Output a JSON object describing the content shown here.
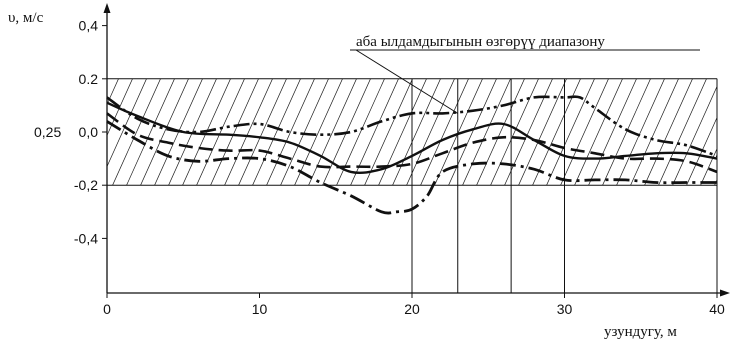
{
  "chart_data": {
    "type": "line",
    "ylabel": "υ, м/с",
    "xlabel": "узундугу, м",
    "xlim": [
      0,
      40
    ],
    "ylim": [
      -0.6,
      0.45
    ],
    "x_ticks": [
      {
        "value": 0,
        "label": "0"
      },
      {
        "value": 10,
        "label": "10"
      },
      {
        "value": 20,
        "label": "20"
      },
      {
        "value": 30,
        "label": "30"
      },
      {
        "value": 40,
        "label": "40"
      }
    ],
    "y_ticks": [
      {
        "value": 0.4,
        "label": "0,4"
      },
      {
        "value": 0.2,
        "label": "0.2"
      },
      {
        "value": 0.0,
        "label": "0,0"
      },
      {
        "value": -0.2,
        "label": "-0,2"
      },
      {
        "value": -0.4,
        "label": "-0,4"
      }
    ],
    "extra_label": {
      "text": "0,25",
      "y": 0.0
    },
    "band": {
      "y_min": -0.2,
      "y_max": 0.2,
      "x_min": 0,
      "x_max": 40,
      "label": "аба ылдамдыгынын өзгөрүү диапазону",
      "leader_to": {
        "x": 23,
        "y": 0.07
      }
    },
    "vertical_lines": [
      20,
      23,
      26.5,
      30,
      40
    ],
    "series": [
      {
        "style": "solid",
        "x": [
          0,
          2,
          5,
          8,
          10,
          12,
          14,
          16,
          18,
          20,
          22,
          24,
          26,
          28,
          30,
          32,
          34,
          36,
          38,
          40
        ],
        "y": [
          0.11,
          0.06,
          0.0,
          -0.01,
          -0.02,
          -0.04,
          -0.09,
          -0.15,
          -0.14,
          -0.09,
          -0.03,
          0.01,
          0.03,
          -0.03,
          -0.09,
          -0.1,
          -0.09,
          -0.08,
          -0.08,
          -0.1
        ]
      },
      {
        "style": "dashed",
        "x": [
          0,
          2,
          4,
          6,
          8,
          10,
          12,
          14,
          16,
          18,
          20,
          22,
          24,
          26,
          28,
          30,
          32,
          34,
          36,
          38,
          40
        ],
        "y": [
          0.07,
          -0.01,
          -0.04,
          -0.06,
          -0.07,
          -0.07,
          -0.1,
          -0.13,
          -0.13,
          -0.13,
          -0.12,
          -0.08,
          -0.04,
          -0.02,
          -0.03,
          -0.06,
          -0.08,
          -0.1,
          -0.1,
          -0.11,
          -0.15
        ]
      },
      {
        "style": "dash-dot-heavy",
        "x": [
          0,
          2,
          4,
          6,
          8,
          10,
          12,
          14,
          16,
          18,
          19,
          20,
          21,
          22,
          24,
          26,
          28,
          30,
          32,
          34,
          36,
          38,
          40
        ],
        "y": [
          0.04,
          -0.03,
          -0.09,
          -0.11,
          -0.1,
          -0.1,
          -0.13,
          -0.19,
          -0.24,
          -0.3,
          -0.3,
          -0.29,
          -0.24,
          -0.15,
          -0.12,
          -0.12,
          -0.14,
          -0.18,
          -0.18,
          -0.18,
          -0.19,
          -0.19,
          -0.19
        ]
      },
      {
        "style": "dash-dot-dot",
        "x": [
          0,
          2,
          4,
          6,
          8,
          10,
          12,
          14,
          16,
          18,
          20,
          22,
          24,
          26,
          28,
          30,
          31,
          32,
          34,
          36,
          38,
          40
        ],
        "y": [
          0.13,
          0.05,
          0.01,
          0.0,
          0.02,
          0.03,
          0.0,
          -0.01,
          0.0,
          0.04,
          0.07,
          0.07,
          0.08,
          0.1,
          0.13,
          0.13,
          0.13,
          0.09,
          0.01,
          -0.03,
          -0.05,
          -0.09
        ]
      }
    ]
  }
}
